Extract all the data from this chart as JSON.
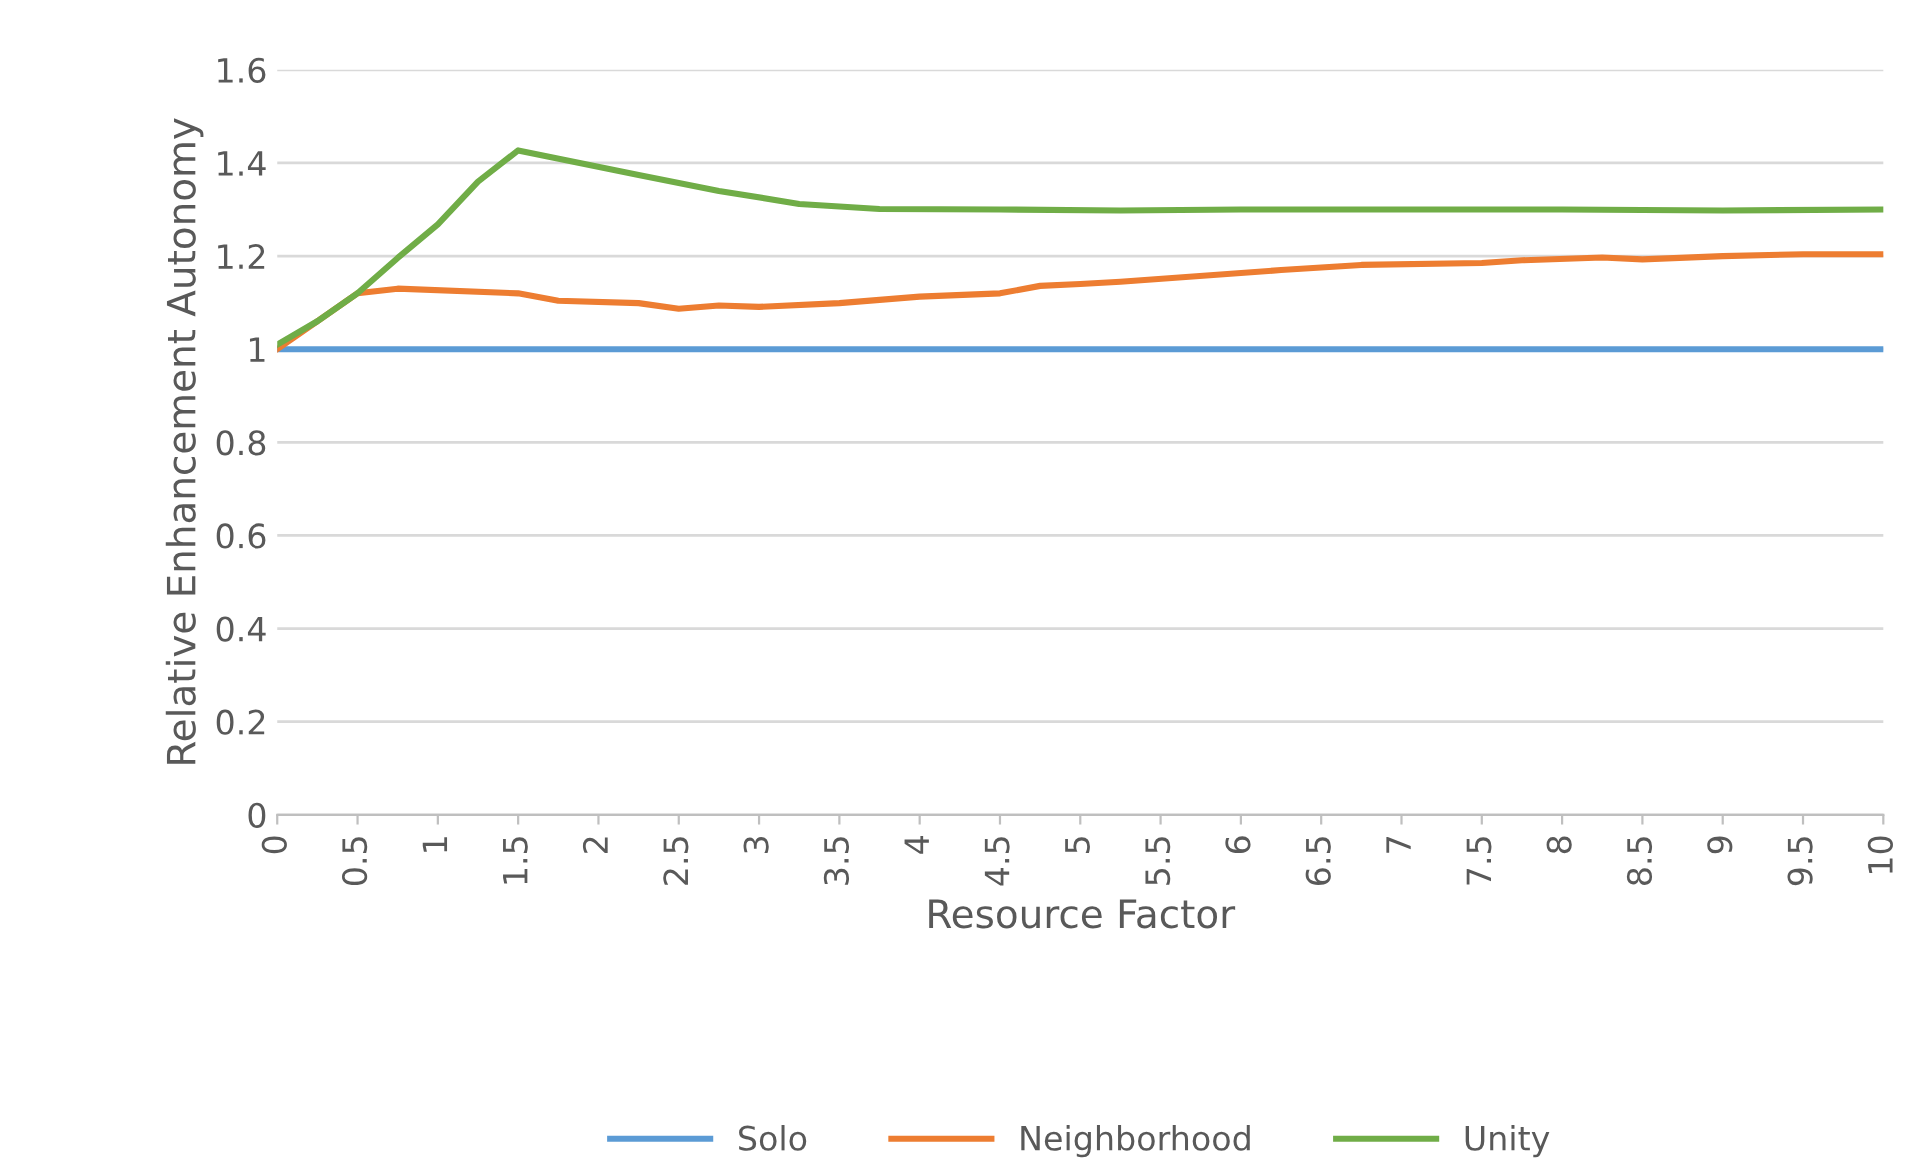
{
  "chart_data": {
    "type": "line",
    "xlabel": "Resource Factor",
    "ylabel": "Relative Enhancement Autonomy",
    "xlim": [
      0,
      10
    ],
    "xticks": [
      0,
      0.5,
      1,
      1.5,
      2,
      2.5,
      3,
      3.5,
      4,
      4.5,
      5,
      5.5,
      6,
      6.5,
      7,
      7.5,
      8,
      8.5,
      9,
      9.5,
      10
    ],
    "ylim": [
      0,
      1.6
    ],
    "yticks": [
      0,
      0.2,
      0.4,
      0.6,
      0.8,
      1,
      1.2,
      1.4,
      1.6
    ],
    "grid": "y",
    "legend": "bottom",
    "marker": "none",
    "line_style": "solid",
    "series": [
      {
        "name": "Solo",
        "color": "#5b9bd5",
        "x": [
          0,
          10
        ],
        "values": [
          1,
          1
        ]
      },
      {
        "name": "Neighborhood",
        "color": "#ed7d31",
        "x": [
          0,
          0.25,
          0.5,
          0.75,
          1.5,
          1.75,
          2.25,
          2.5,
          2.75,
          3,
          3.5,
          4,
          4.5,
          4.75,
          5,
          5.25,
          6.25,
          6.75,
          7.5,
          7.75,
          8.25,
          8.5,
          9,
          9.5,
          10
        ],
        "values": [
          1.0,
          1.06,
          1.12,
          1.13,
          1.12,
          1.104,
          1.099,
          1.087,
          1.094,
          1.091,
          1.099,
          1.113,
          1.12,
          1.136,
          1.14,
          1.145,
          1.17,
          1.181,
          1.185,
          1.191,
          1.197,
          1.193,
          1.2,
          1.204,
          1.204
        ]
      },
      {
        "name": "Unity",
        "color": "#70ad47",
        "x": [
          0,
          0.25,
          0.5,
          0.75,
          1,
          1.25,
          1.5,
          2.25,
          2.75,
          3.25,
          3.75,
          4.5,
          5.25,
          6,
          7,
          8,
          9,
          10
        ],
        "values": [
          1.01,
          1.06,
          1.12,
          1.196,
          1.268,
          1.36,
          1.427,
          1.374,
          1.34,
          1.312,
          1.301,
          1.3,
          1.298,
          1.3,
          1.3,
          1.3,
          1.298,
          1.3
        ]
      }
    ]
  }
}
